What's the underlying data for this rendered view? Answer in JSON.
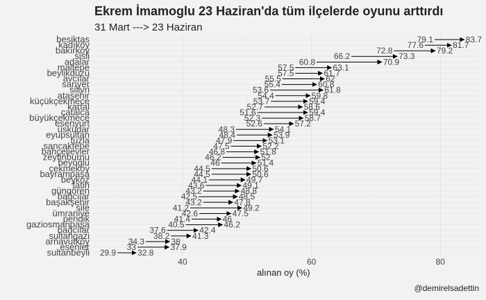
{
  "chart_data": {
    "type": "dumbbell-arrow",
    "title": "Ekrem İmamoglu  23 Haziran'da tüm ilçelerde oyunu arttırdı",
    "subtitle": "31 Mart ---> 23 Haziran",
    "xlabel": "alınan oy (%)",
    "ylabel": "",
    "caption": "@demirelsadettin",
    "xlim": [
      26,
      86
    ],
    "xticks": [
      40,
      60,
      80
    ],
    "grid": true,
    "series": [
      {
        "name": "31 Mart"
      },
      {
        "name": "23 Haziran"
      }
    ],
    "rows": [
      {
        "district": "besiktas",
        "start": 79.1,
        "end": 83.7
      },
      {
        "district": "kadıköy",
        "start": 77.6,
        "end": 81.7
      },
      {
        "district": "bakırköy",
        "start": 72.8,
        "end": 79.2
      },
      {
        "district": "sisli",
        "start": 66.2,
        "end": 73.3
      },
      {
        "district": "adalar",
        "start": 60.8,
        "end": 70.9
      },
      {
        "district": "maltepe",
        "start": 57.5,
        "end": 63.1
      },
      {
        "district": "beylikdüzü",
        "start": 57.5,
        "end": 61.7
      },
      {
        "district": "avcılar",
        "start": 55.5,
        "end": 62
      },
      {
        "district": "sarıyer",
        "start": 55.4,
        "end": 60.8
      },
      {
        "district": "silivri",
        "start": 53.6,
        "end": 61.8
      },
      {
        "district": "ataşehir",
        "start": 54.4,
        "end": 59.8
      },
      {
        "district": "küçükçekmece",
        "start": 53.7,
        "end": 59.4
      },
      {
        "district": "kartal",
        "start": 52.7,
        "end": 58.6
      },
      {
        "district": "çatalca",
        "start": 51.6,
        "end": 59.4
      },
      {
        "district": "büyükçekmece",
        "start": 52.3,
        "end": 58.7
      },
      {
        "district": "esenyurt",
        "start": 52.6,
        "end": 57.2
      },
      {
        "district": "üsküdar",
        "start": 48.3,
        "end": 54.1
      },
      {
        "district": "eyupsultan",
        "start": 48.4,
        "end": 53.9
      },
      {
        "district": "tuzla",
        "start": 47.9,
        "end": 53.1
      },
      {
        "district": "sancaktepe",
        "start": 47.5,
        "end": 52.2
      },
      {
        "district": "bahçelievler",
        "start": 46.8,
        "end": 51.8
      },
      {
        "district": "zeytinburnu",
        "start": 46.2,
        "end": 52
      },
      {
        "district": "beyoğlu",
        "start": 46,
        "end": 51.4
      },
      {
        "district": "çekmeköy",
        "start": 44.5,
        "end": 50.6
      },
      {
        "district": "bayrampaşa",
        "start": 44.5,
        "end": 50.6
      },
      {
        "district": "beykoz",
        "start": 44.1,
        "end": 49.7
      },
      {
        "district": "fatih",
        "start": 43.6,
        "end": 49.1
      },
      {
        "district": "güngören",
        "start": 43.2,
        "end": 48.8
      },
      {
        "district": "bağcılar",
        "start": 42.5,
        "end": 48.5
      },
      {
        "district": "başakşehir",
        "start": 43.2,
        "end": 47.8
      },
      {
        "district": "sile",
        "start": 41.2,
        "end": 49.2
      },
      {
        "district": "ümraniye",
        "start": 42.6,
        "end": 47.5
      },
      {
        "district": "pendik",
        "start": 41.4,
        "end": 46
      },
      {
        "district": "gaziosmanpaşa",
        "start": 40.5,
        "end": 46.2
      },
      {
        "district": "bağcılar",
        "start": 37.6,
        "end": 42.4
      },
      {
        "district": "sultangazi",
        "start": 38.2,
        "end": 41.3
      },
      {
        "district": "arnavutköy",
        "start": 34.3,
        "end": 38
      },
      {
        "district": "esenler",
        "start": 33,
        "end": 37.9
      },
      {
        "district": "sultanbeyli",
        "start": 29.9,
        "end": 32.8
      }
    ]
  }
}
